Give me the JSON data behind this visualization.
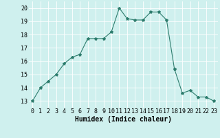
{
  "x": [
    0,
    1,
    2,
    3,
    4,
    5,
    6,
    7,
    8,
    9,
    10,
    11,
    12,
    13,
    14,
    15,
    16,
    17,
    18,
    19,
    20,
    21,
    22,
    23
  ],
  "y": [
    13,
    14,
    14.5,
    15,
    15.8,
    16.3,
    16.5,
    17.7,
    17.7,
    17.7,
    18.2,
    20.0,
    19.2,
    19.1,
    19.1,
    19.7,
    19.7,
    19.1,
    15.4,
    13.6,
    13.8,
    13.3,
    13.3,
    13.0
  ],
  "xlabel": "Humidex (Indice chaleur)",
  "xlim": [
    -0.5,
    23.5
  ],
  "ylim": [
    12.5,
    20.5
  ],
  "yticks": [
    13,
    14,
    15,
    16,
    17,
    18,
    19,
    20
  ],
  "xticks": [
    0,
    1,
    2,
    3,
    4,
    5,
    6,
    7,
    8,
    9,
    10,
    11,
    12,
    13,
    14,
    15,
    16,
    17,
    18,
    19,
    20,
    21,
    22,
    23
  ],
  "line_color": "#2e7d6e",
  "bg_color": "#cff0ee",
  "grid_color": "#ffffff",
  "label_fontsize": 7,
  "tick_fontsize": 6
}
